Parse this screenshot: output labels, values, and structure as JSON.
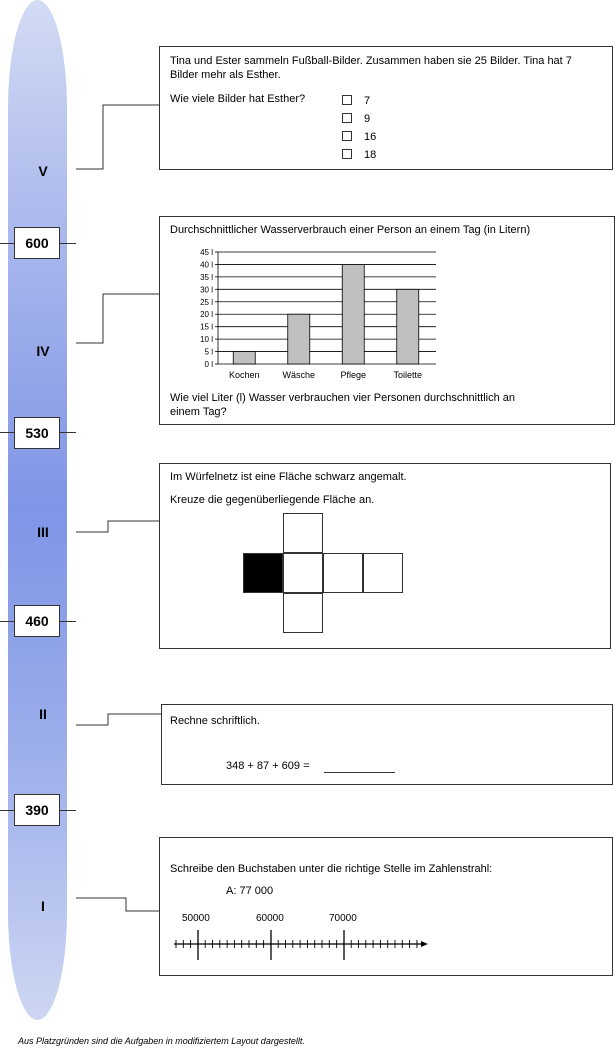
{
  "scale": {
    "levels": [
      "V",
      "IV",
      "III",
      "II",
      "I"
    ],
    "scores": [
      "600",
      "530",
      "460",
      "390"
    ],
    "gradient_colors": [
      "#d3dcf4",
      "#7f95e6",
      "#cdd7f3"
    ]
  },
  "tasks": {
    "t5": {
      "text": "Tina und Ester sammeln Fußball-Bilder. Zusammen haben sie 25 Bilder. Tina hat 7 Bilder mehr als Esther.",
      "question": "Wie viele Bilder hat Esther?",
      "options": [
        "7",
        "9",
        "16",
        "18"
      ]
    },
    "t4": {
      "title": "Durchschnittlicher Wasserverbrauch einer Person an einem Tag (in Litern)",
      "question": "Wie viel Liter (l) Wasser verbrauchen vier Personen durchschnittlich an einem Tag?"
    },
    "t3": {
      "line1": "Im Würfelnetz ist eine Fläche schwarz angemalt.",
      "line2": "Kreuze die gegenüberliegende Fläche an."
    },
    "t2": {
      "instruction": "Rechne schriftlich.",
      "equation": "348 + 87 + 609 ="
    },
    "t1": {
      "instruction": "Schreibe den Buchstaben unter die richtige Stelle im Zahlenstrahl:",
      "target": "A: 77 000",
      "labels": [
        "50000",
        "60000",
        "70000"
      ]
    }
  },
  "chart_data": {
    "type": "bar",
    "categories": [
      "Kochen",
      "Wäsche",
      "Pflege",
      "Toilette"
    ],
    "values": [
      5,
      20,
      40,
      30
    ],
    "yticks": [
      "0 l",
      "5 l",
      "10 l",
      "15 l",
      "20 l",
      "25 l",
      "30 l",
      "35 l",
      "40 l",
      "45 l"
    ],
    "ylim": [
      0,
      45
    ],
    "grid": true,
    "bar_color": "#c0c0c0"
  },
  "footnote": "Aus Platzgründen sind die Aufgaben in modifiziertem Layout dargestellt."
}
